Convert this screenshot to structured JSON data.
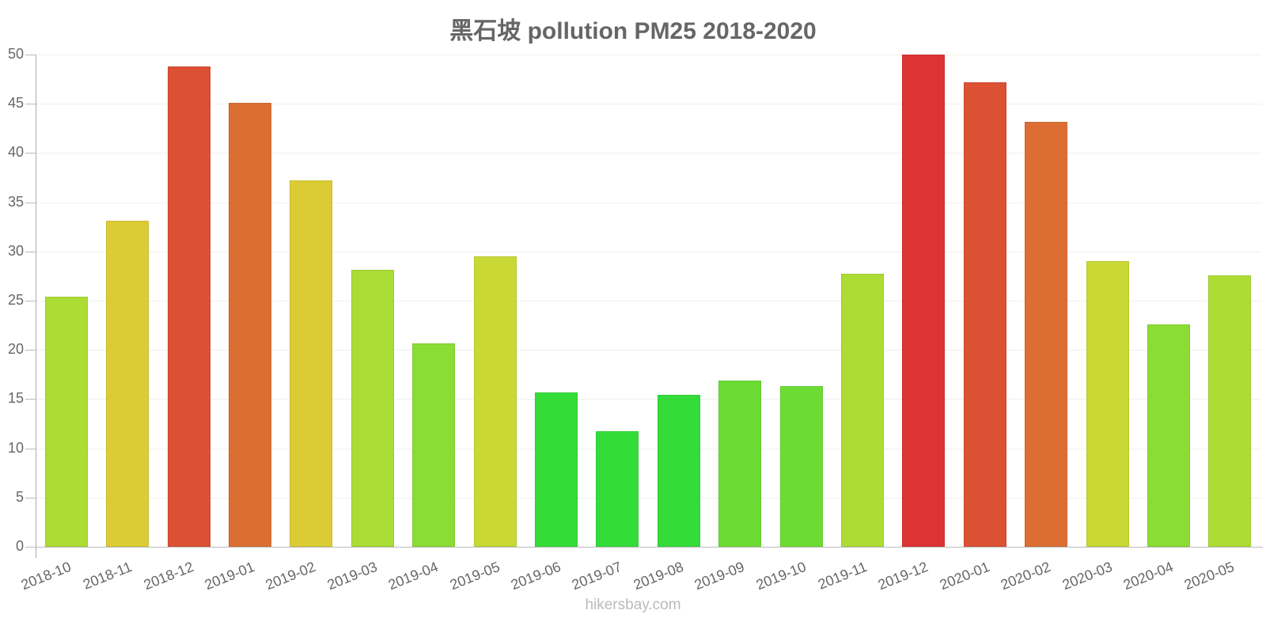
{
  "title": "黑石坡 pollution PM25 2018-2020",
  "footer": "hikersbay.com",
  "chart_data": {
    "type": "bar",
    "title": "黑石坡 pollution PM25 2018-2020",
    "xlabel": "",
    "ylabel": "",
    "ylim": [
      0,
      50
    ],
    "yticks": [
      0,
      5,
      10,
      15,
      20,
      25,
      30,
      35,
      40,
      45,
      50
    ],
    "grid": true,
    "legend": null,
    "categories": [
      "2018-10",
      "2018-11",
      "2018-12",
      "2019-01",
      "2019-02",
      "2019-03",
      "2019-04",
      "2019-05",
      "2019-06",
      "2019-07",
      "2019-08",
      "2019-09",
      "2019-10",
      "2019-11",
      "2019-12",
      "2020-01",
      "2020-02",
      "2020-03",
      "2020-04",
      "2020-05"
    ],
    "values": [
      25.4,
      33.1,
      48.8,
      45.1,
      37.2,
      28.1,
      20.7,
      29.5,
      15.7,
      11.7,
      15.4,
      16.9,
      16.3,
      27.7,
      50,
      47.2,
      43.2,
      29.0,
      22.6,
      27.6
    ],
    "colors": [
      "#addc34",
      "#dbcc35",
      "#dc5034",
      "#dc6e34",
      "#dbcc35",
      "#a9dc34",
      "#8bdc34",
      "#c9d834",
      "#34dc3a",
      "#34dc3a",
      "#34dc3a",
      "#6cdc34",
      "#6cdc34",
      "#addc34",
      "#dc3434",
      "#dc5034",
      "#dc6e34",
      "#c9d834",
      "#8bdc34",
      "#addc34"
    ]
  }
}
